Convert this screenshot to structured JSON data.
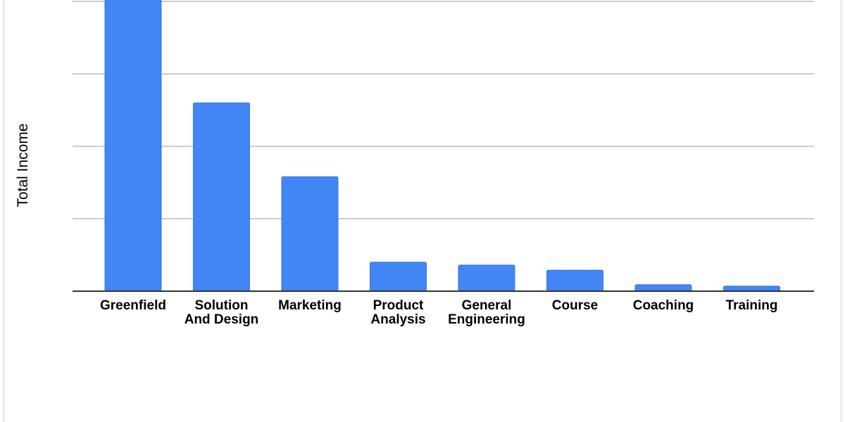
{
  "chart_data": {
    "type": "bar",
    "title": "",
    "xlabel": "",
    "ylabel": "Total Income",
    "categories": [
      [
        "Greenfield"
      ],
      [
        "Solution",
        "And Design"
      ],
      [
        "Marketing"
      ],
      [
        "Product",
        "Analysis"
      ],
      [
        "General",
        "Engineering"
      ],
      [
        "Course"
      ],
      [
        "Coaching"
      ],
      [
        "Training"
      ]
    ],
    "values": [
      4.2,
      2.6,
      1.58,
      0.4,
      0.36,
      0.29,
      0.09,
      0.07
    ],
    "ylim": [
      0,
      4
    ],
    "y_gridlines": [
      0,
      1,
      2,
      3,
      4
    ],
    "grid": true,
    "legend": "none",
    "bar_color": "#4285f4",
    "grid_color": "#cccccc",
    "axis_color": "#333333"
  }
}
